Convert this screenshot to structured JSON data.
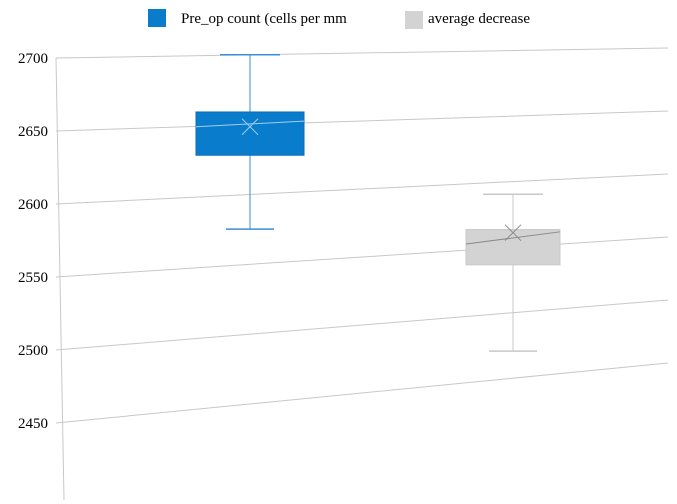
{
  "chart_data": {
    "type": "box",
    "legend": {
      "placement": "top",
      "entries": [
        {
          "name": "Pre_op count (cells per mm",
          "color": "#0a7ccc"
        },
        {
          "name": "average decrease",
          "color": "#d3d3d3"
        }
      ]
    },
    "y_ticks": [
      "2700",
      "2650",
      "2600",
      "2550",
      "2500",
      "2450"
    ],
    "ylim": [
      2400,
      2700
    ],
    "grid": true,
    "series": [
      {
        "name": "Pre_op count (cells per mm",
        "color": "#0a7ccc",
        "whisker_color": "#3a8fd8",
        "min": 2575,
        "q1": 2628,
        "median": 2649,
        "mean": 2647,
        "q3": 2659,
        "max": 2700
      },
      {
        "name": "average decrease",
        "color": "#d3d3d3",
        "whisker_color": "#c8c8c8",
        "min": 2470,
        "q1": 2536,
        "median": 2552,
        "mean": 2556,
        "q3": 2563,
        "max": 2590
      }
    ]
  }
}
